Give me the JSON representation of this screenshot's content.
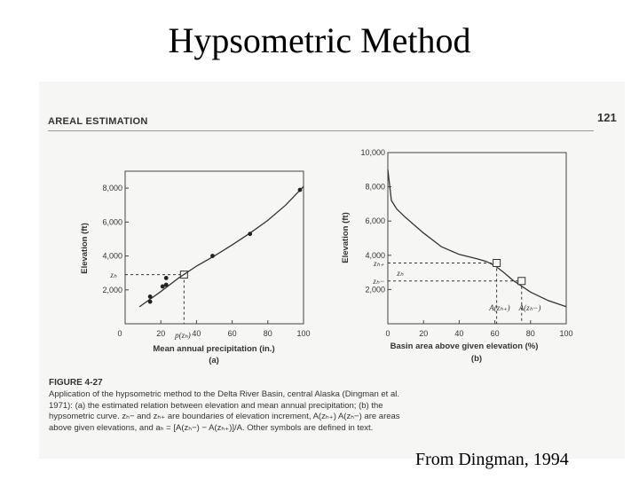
{
  "slide": {
    "title": "Hypsometric Method",
    "source": "From Dingman, 1994"
  },
  "page": {
    "section_head": "AREAL ESTIMATION",
    "page_number": "121"
  },
  "figure": {
    "label": "FIGURE 4-27",
    "caption_lines": [
      "Application of the hypsometric method to the Delta River Basin, central Alaska (Dingman et al.",
      "1971): (a) the estimated relation between elevation and mean annual precipitation; (b) the",
      "hypsometric curve. zₕ− and zₕ₊ are boundaries of elevation increment, A(zₕ₊) A(zₕ−) are areas",
      "above given elevations, and aₕ = [A(zₕ−) − A(zₕ₊)]/A. Other symbols are defined in text."
    ]
  },
  "chart_data": [
    {
      "type": "scatter",
      "panel": "(a)",
      "xlabel": "Mean annual precipitation (in.)",
      "ylabel": "Elevation (ft)",
      "xlim": [
        0,
        100
      ],
      "ylim": [
        0,
        9000
      ],
      "x_ticks": [
        "0",
        "20",
        "40",
        "60",
        "80",
        "100"
      ],
      "y_ticks": [
        "2,000",
        "4,000",
        "6,000",
        "8,000"
      ],
      "points": [
        {
          "x": 14,
          "y": 1300
        },
        {
          "x": 14,
          "y": 1600
        },
        {
          "x": 21,
          "y": 2200
        },
        {
          "x": 23,
          "y": 2300
        },
        {
          "x": 23,
          "y": 2700
        },
        {
          "x": 49,
          "y": 4000
        },
        {
          "x": 70,
          "y": 5300
        },
        {
          "x": 98,
          "y": 7900
        }
      ],
      "curve": [
        {
          "x": 8,
          "y": 1000
        },
        {
          "x": 20,
          "y": 1900
        },
        {
          "x": 30,
          "y": 2700
        },
        {
          "x": 40,
          "y": 3400
        },
        {
          "x": 50,
          "y": 4000
        },
        {
          "x": 60,
          "y": 4650
        },
        {
          "x": 70,
          "y": 5350
        },
        {
          "x": 80,
          "y": 6100
        },
        {
          "x": 90,
          "y": 7000
        },
        {
          "x": 100,
          "y": 8100
        }
      ],
      "marker": {
        "x": 33,
        "y": 2900
      },
      "annotations": {
        "z_label": "zₕ",
        "p_label": "p(zₕ)"
      }
    },
    {
      "type": "line",
      "panel": "(b)",
      "xlabel": "Basin area above given elevation (%)",
      "ylabel": "Elevation (ft)",
      "xlim": [
        0,
        100
      ],
      "ylim": [
        0,
        10000
      ],
      "x_ticks": [
        "0",
        "20",
        "40",
        "60",
        "80",
        "100"
      ],
      "y_ticks": [
        "2,000",
        "4,000",
        "6,000",
        "8,000",
        "10,000"
      ],
      "curve": [
        {
          "x": 0,
          "y": 9000
        },
        {
          "x": 2,
          "y": 7200
        },
        {
          "x": 5,
          "y": 6700
        },
        {
          "x": 10,
          "y": 6200
        },
        {
          "x": 20,
          "y": 5300
        },
        {
          "x": 30,
          "y": 4500
        },
        {
          "x": 40,
          "y": 4050
        },
        {
          "x": 50,
          "y": 3800
        },
        {
          "x": 55,
          "y": 3650
        },
        {
          "x": 60,
          "y": 3400
        },
        {
          "x": 65,
          "y": 3000
        },
        {
          "x": 70,
          "y": 2550
        },
        {
          "x": 80,
          "y": 1850
        },
        {
          "x": 90,
          "y": 1350
        },
        {
          "x": 100,
          "y": 1000
        }
      ],
      "increment": {
        "z_upper": 3550,
        "z_lower": 2500,
        "a_upper": 61,
        "a_lower": 75
      },
      "annotations": {
        "z_upper_label": "zₕ₊",
        "z_mid_label": "zₕ",
        "z_lower_label": "zₕ−",
        "a_upper_label": "A(zₕ₊)",
        "a_lower_label": "A(zₕ−)"
      }
    }
  ]
}
